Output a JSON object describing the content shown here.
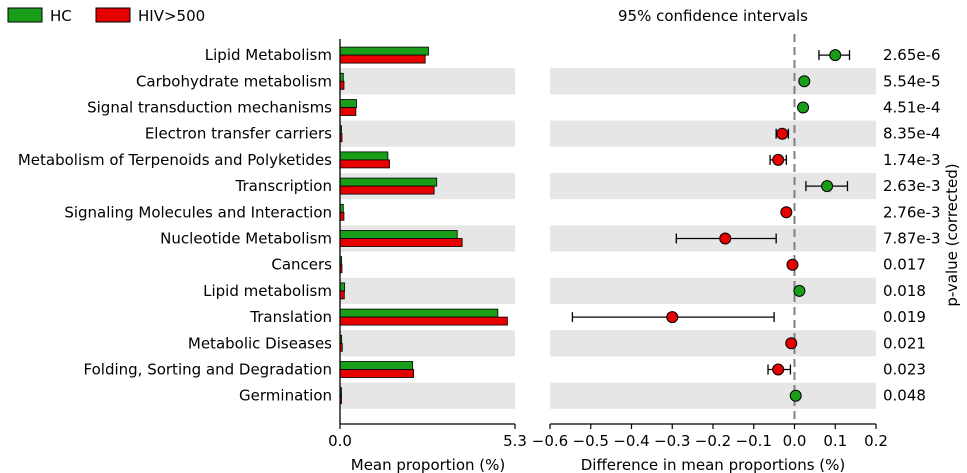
{
  "chart_data": {
    "type": "bar",
    "legend": {
      "position": "top-left",
      "entries": [
        {
          "name": "HC",
          "color": "#1a9e1a"
        },
        {
          "name": "HIV>500",
          "color": "#e60000"
        }
      ]
    },
    "categories": [
      "Lipid Metabolism",
      "Carbohydrate metabolism",
      "Signal transduction mechanisms",
      "Electron transfer carriers",
      "Metabolism of Terpenoids and Polyketides",
      "Transcription",
      "Signaling Molecules and Interaction",
      "Nucleotide Metabolism",
      "Cancers",
      "Lipid metabolism",
      "Translation",
      "Metabolic Diseases",
      "Folding, Sorting and Degradation",
      "Germination"
    ],
    "series": [
      {
        "name": "HC",
        "color": "#1a9e1a",
        "values": [
          2.68,
          0.1,
          0.5,
          0.03,
          1.45,
          2.93,
          0.1,
          3.55,
          0.05,
          0.14,
          4.78,
          0.05,
          2.2,
          0.02
        ]
      },
      {
        "name": "HIV>500",
        "color": "#e60000",
        "values": [
          2.58,
          0.12,
          0.48,
          0.06,
          1.5,
          2.85,
          0.12,
          3.7,
          0.06,
          0.13,
          5.07,
          0.07,
          2.23,
          0.02
        ]
      }
    ],
    "bar_axis": {
      "xlabel": "Mean proportion (%)",
      "xlim": [
        0.0,
        5.3
      ],
      "ticks": [
        "0.0",
        "5.3"
      ]
    },
    "ci": {
      "title": "95% confidence intervals",
      "xlabel": "Difference in mean proportions (%)",
      "xlim": [
        -0.6,
        0.2
      ],
      "ticks": [
        "−0.6",
        "−0.5",
        "−0.4",
        "−0.3",
        "−0.2",
        "−0.1",
        "0.0",
        "0.1",
        "0.2"
      ],
      "tick_values": [
        -0.6,
        -0.5,
        -0.4,
        -0.3,
        -0.2,
        -0.1,
        0.0,
        0.1,
        0.2
      ],
      "points": [
        {
          "diff": 0.1,
          "low": 0.06,
          "high": 0.135,
          "group": "HC"
        },
        {
          "diff": 0.024,
          "low": 0.018,
          "high": 0.03,
          "group": "HC"
        },
        {
          "diff": 0.021,
          "low": 0.015,
          "high": 0.027,
          "group": "HC"
        },
        {
          "diff": -0.03,
          "low": -0.045,
          "high": -0.015,
          "group": "HIV>500"
        },
        {
          "diff": -0.04,
          "low": -0.06,
          "high": -0.02,
          "group": "HIV>500"
        },
        {
          "diff": 0.08,
          "low": 0.028,
          "high": 0.13,
          "group": "HC"
        },
        {
          "diff": -0.02,
          "low": -0.025,
          "high": -0.015,
          "group": "HIV>500"
        },
        {
          "diff": -0.17,
          "low": -0.29,
          "high": -0.045,
          "group": "HIV>500"
        },
        {
          "diff": -0.005,
          "low": -0.008,
          "high": -0.002,
          "group": "HIV>500"
        },
        {
          "diff": 0.012,
          "low": 0.007,
          "high": 0.018,
          "group": "HC"
        },
        {
          "diff": -0.3,
          "low": -0.545,
          "high": -0.05,
          "group": "HIV>500"
        },
        {
          "diff": -0.008,
          "low": -0.012,
          "high": -0.004,
          "group": "HIV>500"
        },
        {
          "diff": -0.04,
          "low": -0.065,
          "high": -0.01,
          "group": "HIV>500"
        },
        {
          "diff": 0.003,
          "low": 0.001,
          "high": 0.005,
          "group": "HC"
        }
      ]
    },
    "pvalues": {
      "label": "p-value (corrected)",
      "values": [
        "2.65e-6",
        "5.54e-5",
        "4.51e-4",
        "8.35e-4",
        "1.74e-3",
        "2.63e-3",
        "2.76e-3",
        "7.87e-3",
        "0.017",
        "0.018",
        "0.019",
        "0.021",
        "0.023",
        "0.048"
      ]
    },
    "grid": false,
    "stripe_color": "#e6e6e6"
  }
}
